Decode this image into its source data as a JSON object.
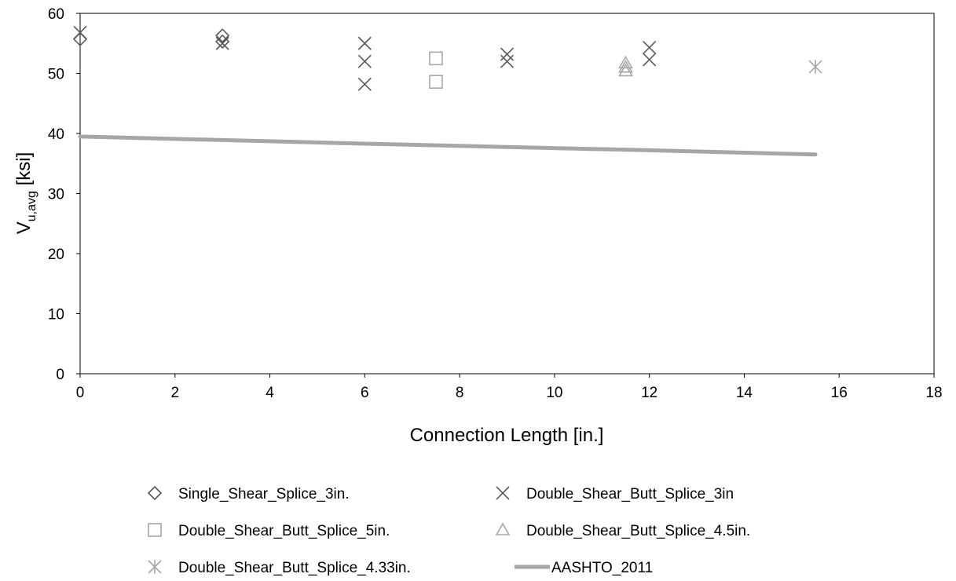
{
  "chart_data": {
    "type": "scatter",
    "title": "",
    "xlabel": "Connection Length [in.]",
    "ylabel": {
      "main": "V",
      "subscript": "u,avg",
      "unit": " [ksi]"
    },
    "xlim": [
      0,
      18
    ],
    "ylim": [
      0,
      60
    ],
    "x_ticks": [
      "0",
      "2",
      "4",
      "6",
      "8",
      "10",
      "12",
      "14",
      "16",
      "18"
    ],
    "y_ticks": [
      "0",
      "10",
      "20",
      "30",
      "40",
      "50",
      "60"
    ],
    "grid": false,
    "legend_position": "bottom",
    "series": [
      {
        "name": "Single_Shear_Splice_3in.",
        "marker": "diamond",
        "color": "#595959",
        "points": [
          [
            0,
            55.7
          ],
          [
            3,
            56.3
          ],
          [
            3,
            55.3
          ]
        ]
      },
      {
        "name": "Double_Shear_Butt_Splice_3in",
        "marker": "x",
        "color": "#595959",
        "points": [
          [
            0,
            56.8
          ],
          [
            3,
            55.0
          ],
          [
            6,
            55.0
          ],
          [
            6,
            52.0
          ],
          [
            6,
            48.2
          ],
          [
            9,
            53.2
          ],
          [
            9,
            52.0
          ],
          [
            12,
            54.3
          ],
          [
            12,
            52.3
          ]
        ]
      },
      {
        "name": "Double_Shear_Butt_Splice_5in.",
        "marker": "square",
        "color": "#a6a6a6",
        "points": [
          [
            7.5,
            52.5
          ],
          [
            7.5,
            48.6
          ]
        ]
      },
      {
        "name": "Double_Shear_Butt_Splice_4.5in.",
        "marker": "triangle",
        "color": "#a6a6a6",
        "points": [
          [
            11.5,
            51.7
          ],
          [
            11.5,
            51.0
          ],
          [
            11.5,
            50.4
          ]
        ]
      },
      {
        "name": "Double_Shear_Butt_Splice_4.33in.",
        "marker": "asterisk",
        "color": "#a6a6a6",
        "points": [
          [
            15.5,
            51.1
          ]
        ]
      },
      {
        "name": "AASHTO_2011",
        "marker": "line",
        "color": "#a6a6a6",
        "points": [
          [
            0,
            39.5
          ],
          [
            6,
            38.3
          ],
          [
            12,
            37.2
          ],
          [
            15.5,
            36.5
          ]
        ]
      }
    ]
  }
}
